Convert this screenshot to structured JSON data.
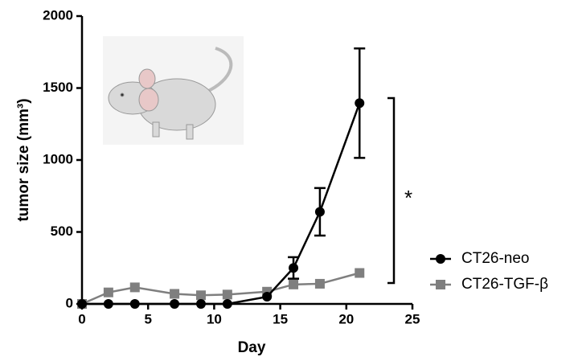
{
  "chart_data": {
    "type": "line",
    "x": [
      0,
      2,
      4,
      7,
      9,
      11,
      14,
      16,
      18,
      21
    ],
    "series": [
      {
        "name": "CT26-TGF-β",
        "color": "#7f7f7f",
        "marker": "square",
        "values": [
          0,
          80,
          115,
          70,
          60,
          65,
          85,
          135,
          140,
          215
        ]
      },
      {
        "name": "CT26-neo",
        "color": "#000000",
        "marker": "circle",
        "values": [
          0,
          0,
          0,
          0,
          0,
          0,
          50,
          250,
          640,
          1395
        ],
        "errors": [
          null,
          null,
          null,
          null,
          null,
          null,
          null,
          75,
          165,
          380
        ]
      }
    ],
    "xlabel": "Day",
    "ylabel": "tumor size (mm³)",
    "xlim": [
      0,
      25
    ],
    "ylim": [
      0,
      2000
    ],
    "xticks": [
      0,
      5,
      10,
      15,
      20,
      25
    ],
    "yticks": [
      0,
      500,
      1000,
      1500,
      2000
    ],
    "annotation": "*",
    "grid": false
  }
}
